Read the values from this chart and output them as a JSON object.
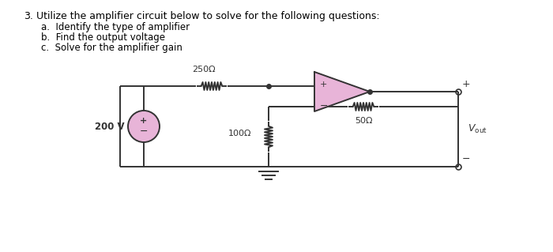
{
  "title_number": "3.",
  "title_text": " Utilize the amplifier circuit below to solve for the following questions:",
  "items": [
    "a.  Identify the type of amplifier",
    "b.  Find the output voltage",
    "c.  Solve for the amplifier gain"
  ],
  "bg_color": "#ffffff",
  "circuit_color": "#333333",
  "opamp_fill": "#e8b4d8",
  "source_fill": "#e8b4d8",
  "r1_label": "250Ω",
  "r2_label": "100Ω",
  "r3_label": "50Ω",
  "vs_label": "200 V",
  "font_size": 8.5,
  "title_font_size": 9.0
}
